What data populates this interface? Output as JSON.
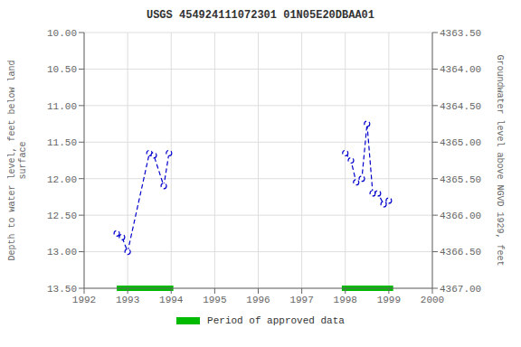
{
  "chart_data": {
    "type": "line",
    "title": "USGS 454924111072301 01N05E20DBAA01",
    "ylabel": "Depth to water level, feet below land\n surface",
    "y2label": "Groundwater level above NGVD 1929, feet",
    "xlim": [
      1992,
      2000
    ],
    "xticks": [
      1992,
      1993,
      1994,
      1995,
      1996,
      1997,
      1998,
      1999,
      2000
    ],
    "ylim": [
      13.5,
      10.0
    ],
    "yticks": [
      {
        "value": 10.0,
        "label": "10.00"
      },
      {
        "value": 10.5,
        "label": "10.50"
      },
      {
        "value": 11.0,
        "label": "11.00"
      },
      {
        "value": 11.5,
        "label": "11.50"
      },
      {
        "value": 12.0,
        "label": "12.00"
      },
      {
        "value": 12.5,
        "label": "12.50"
      },
      {
        "value": 13.0,
        "label": "13.00"
      },
      {
        "value": 13.5,
        "label": "13.50"
      }
    ],
    "y2lim": [
      4367.0,
      4363.5
    ],
    "y2ticks": [
      {
        "value": 4367.0,
        "label": "4367.00"
      },
      {
        "value": 4366.5,
        "label": "4366.50"
      },
      {
        "value": 4366.0,
        "label": "4366.00"
      },
      {
        "value": 4365.5,
        "label": "4365.50"
      },
      {
        "value": 4365.0,
        "label": "4365.00"
      },
      {
        "value": 4364.5,
        "label": "4364.50"
      },
      {
        "value": 4364.0,
        "label": "4364.00"
      },
      {
        "value": 4363.5,
        "label": "4363.50"
      }
    ],
    "grid": true,
    "series": [
      {
        "x": [
          1992.75,
          1992.87,
          1993.0,
          1993.5,
          1993.6,
          1993.83,
          1993.95
        ],
        "values": [
          12.75,
          12.8,
          13.0,
          11.65,
          11.68,
          12.1,
          11.65
        ],
        "color": "#0000cc",
        "line_style": "dashed",
        "marker": "o"
      },
      {
        "x": [
          1998.0,
          1998.13,
          1998.25,
          1998.38,
          1998.5,
          1998.63,
          1998.75,
          1998.88,
          1999.0
        ],
        "values": [
          11.65,
          11.75,
          12.05,
          12.0,
          11.25,
          12.2,
          12.2,
          12.35,
          12.3
        ],
        "color": "#0000cc",
        "line_style": "dashed",
        "marker": "o"
      }
    ],
    "approved_periods": {
      "name": "Period of approved data",
      "color": "#00bb00",
      "ranges": [
        [
          1992.75,
          1994.05
        ],
        [
          1997.92,
          1999.1
        ]
      ]
    },
    "legend": "bottom"
  }
}
